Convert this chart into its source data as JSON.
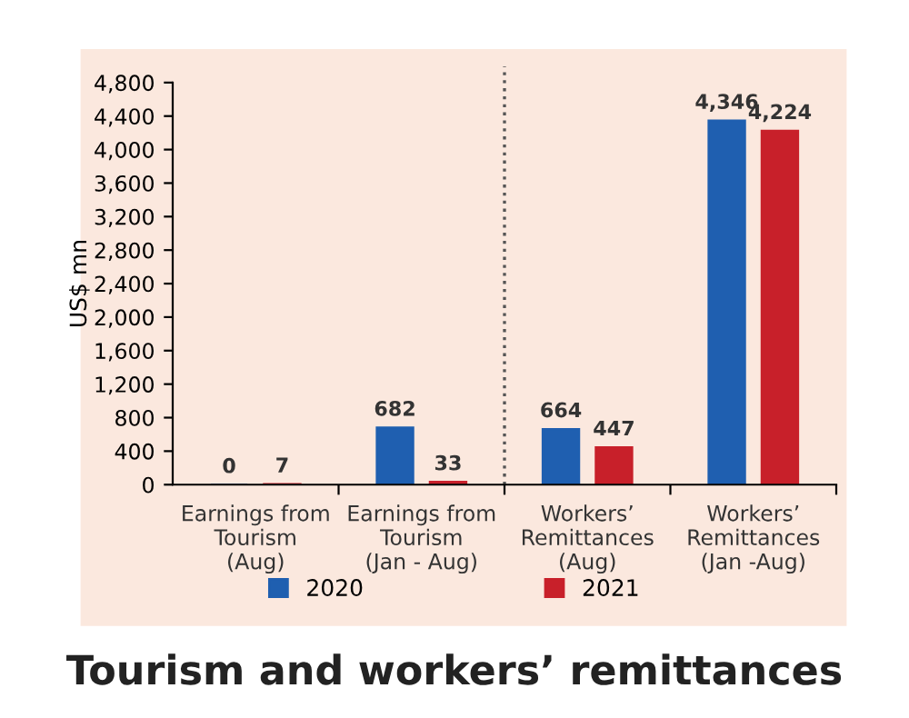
{
  "chart_data": {
    "type": "bar",
    "title": "Tourism and workers’ remittances",
    "ylabel": "US$ mn",
    "categories": [
      "Earnings from\nTourism\n(Aug)",
      "Earnings from\nTourism\n(Jan - Aug)",
      "Workers’\nRemittances\n(Aug)",
      "Workers’\nRemittances\n(Jan -Aug)"
    ],
    "series": [
      {
        "name": "2020",
        "color": "#1f5fb0",
        "values": [
          0,
          682,
          664,
          4346
        ],
        "value_labels": [
          "0",
          "682",
          "664",
          "4,346"
        ]
      },
      {
        "name": "2021",
        "color": "#c8202a",
        "values": [
          7,
          33,
          447,
          4224
        ],
        "value_labels": [
          "7",
          "33",
          "447",
          "4,224"
        ]
      }
    ],
    "ylim": [
      0,
      4800
    ],
    "yticks": [
      0,
      400,
      800,
      {
        "value": 1200,
        "label": "1,200"
      },
      {
        "value": 1600,
        "label": "1,600"
      },
      {
        "value": 2000,
        "label": "2,000"
      },
      {
        "value": 2400,
        "label": "2,400"
      },
      {
        "value": 2800,
        "label": "2,800"
      },
      {
        "value": 3200,
        "label": "3,200"
      },
      {
        "value": 3600,
        "label": "3,600"
      },
      {
        "value": 4000,
        "label": "4,000"
      },
      {
        "value": 4400,
        "label": "4,400"
      },
      {
        "value": 4800,
        "label": "4,800"
      }
    ],
    "grid": false,
    "legend": "bottom"
  }
}
